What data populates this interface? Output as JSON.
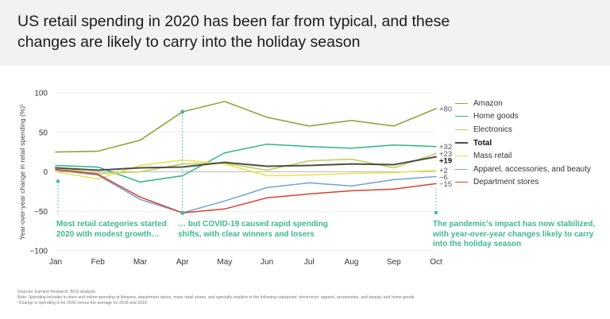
{
  "title": "US retail spending in 2020 has been far from typical, and these changes are likely to carry into the holiday season",
  "colors": {
    "header_bg": "#f2f2f2",
    "annotation": "#3cb98f",
    "marker": "#4fb8a9",
    "grid": "#e6e6e6"
  },
  "annotations": [
    "Most retail categories started 2020 with modest growth…",
    "… but COVID-19 caused rapid spending shifts, with clear winners and losers",
    "The pandemic's impact has now stabilized, with year-over-year changes likely to carry into the holiday season"
  ],
  "notes": [
    "Sources: Earnest Research; BCG analysis.",
    "Note: Spending includes in-store and online spending at Amazon, department stores, mass retail stores, and specialty retailers in the following categories: electronics; apparel, accessories, and beauty; and home goods.",
    "¹Change in spending is for 2020 versus the average for 2018 and 2019."
  ],
  "chart_data": {
    "type": "line",
    "ylabel": "Year-over-year change in retail spending (%)¹",
    "xlabel": "",
    "ylim": [
      -100,
      100
    ],
    "yticks": [
      100,
      50,
      0,
      -50,
      -100
    ],
    "ytick_labels": [
      "100",
      "50",
      "0",
      "−50",
      "−100"
    ],
    "categories": [
      "Jan",
      "Feb",
      "Mar",
      "Apr",
      "May",
      "Jun",
      "Jul",
      "Aug",
      "Sep",
      "Oct"
    ],
    "series": [
      {
        "name": "Amazon",
        "color": "#8fa83c",
        "width": 1.6,
        "bold": false,
        "end_label": "+80",
        "values": [
          25,
          26,
          40,
          76,
          89,
          69,
          58,
          65,
          58,
          80
        ]
      },
      {
        "name": "Home goods",
        "color": "#2bb585",
        "width": 1.5,
        "bold": false,
        "end_label": "+32",
        "values": [
          8,
          6,
          -13,
          -5,
          24,
          35,
          32,
          30,
          34,
          32
        ]
      },
      {
        "name": "Electronics",
        "color": "#b9cf52",
        "width": 1.5,
        "bold": false,
        "end_label": "+23",
        "values": [
          5,
          -2,
          0,
          10,
          11,
          2,
          14,
          16,
          5,
          23
        ]
      },
      {
        "name": "Total",
        "color": "#4d4d45",
        "width": 2,
        "bold": true,
        "end_label": "+19",
        "values": [
          5,
          2,
          5,
          6,
          12,
          7,
          8,
          10,
          9,
          19
        ]
      },
      {
        "name": "Mass retail",
        "color": "#e8e04d",
        "width": 1.5,
        "bold": false,
        "end_label": "+2",
        "values": [
          0,
          -9,
          8,
          15,
          10,
          -5,
          -4,
          -2,
          -1,
          2
        ]
      },
      {
        "name": "Apparel, accessories, and beauty",
        "color": "#6fa3d4",
        "width": 1.5,
        "bold": false,
        "end_label": "−6",
        "values": [
          2,
          -4,
          -35,
          -52,
          -37,
          -20,
          -14,
          -18,
          -10,
          -6
        ]
      },
      {
        "name": "Department stores",
        "color": "#d9412e",
        "width": 1.5,
        "bold": false,
        "end_label": "−15",
        "values": [
          3,
          -3,
          -32,
          -52,
          -47,
          -33,
          -28,
          -24,
          -22,
          -15
        ]
      }
    ]
  }
}
